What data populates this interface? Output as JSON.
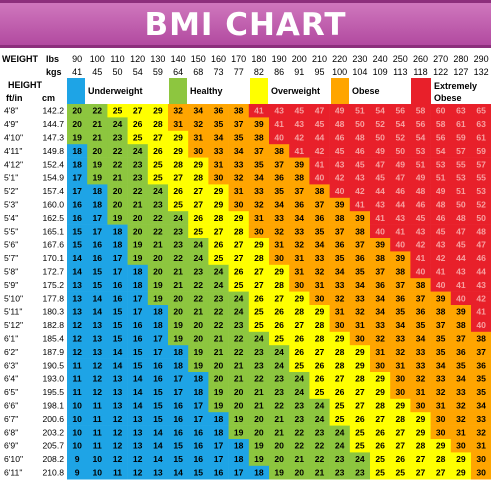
{
  "header": {
    "title": "BMI CHART"
  },
  "chart_data": {
    "type": "heatmap",
    "title": "BMI CHART",
    "weight_label": "WEIGHT",
    "weight_units": [
      "lbs",
      "kgs"
    ],
    "height_label": "HEIGHT",
    "height_units": [
      "ft/in",
      "cm"
    ],
    "weights_lbs": [
      90,
      100,
      110,
      120,
      130,
      140,
      150,
      160,
      170,
      180,
      190,
      200,
      210,
      220,
      230,
      240,
      250,
      260,
      270,
      280,
      290
    ],
    "weights_kgs": [
      41,
      45,
      50,
      54,
      59,
      64,
      68,
      73,
      77,
      82,
      86,
      91,
      95,
      100,
      104,
      109,
      113,
      118,
      122,
      127,
      132
    ],
    "heights_ftin": [
      "4'8\"",
      "4'9\"",
      "4'10\"",
      "4'11\"",
      "4'12\"",
      "5'1\"",
      "5'2\"",
      "5'3\"",
      "5'4\"",
      "5'5\"",
      "5'6\"",
      "5'7\"",
      "5'8\"",
      "5'9\"",
      "5'10\"",
      "5'11\"",
      "5'12\"",
      "6'1\"",
      "6'2\"",
      "6'3\"",
      "6'4\"",
      "6'5\"",
      "6'6\"",
      "6'7\"",
      "6'8\"",
      "6'9\"",
      "6'10\"",
      "6'11\""
    ],
    "heights_cm": [
      "142.2",
      "144.7",
      "147.3",
      "149.8",
      "152.4",
      "154.9",
      "157.4",
      "160.0",
      "162.5",
      "165.1",
      "167.6",
      "170.1",
      "172.7",
      "175.2",
      "177.8",
      "180.3",
      "182.8",
      "185.4",
      "187.9",
      "190.5",
      "193.0",
      "195.5",
      "198.1",
      "200.6",
      "203.2",
      "205.7",
      "208.2",
      "210.8"
    ],
    "categories": [
      {
        "name": "Underweight",
        "color": "#1ea4e6",
        "max_bmi": 18
      },
      {
        "name": "Healthy",
        "color": "#8dc63f",
        "max_bmi": 24
      },
      {
        "name": "Overweight",
        "color": "#ffff00",
        "max_bmi": 29
      },
      {
        "name": "Obese",
        "color": "#ffa500",
        "max_bmi": 39
      },
      {
        "name": "Extremely Obese",
        "color": "#e8202a",
        "max_bmi": 99
      }
    ]
  }
}
